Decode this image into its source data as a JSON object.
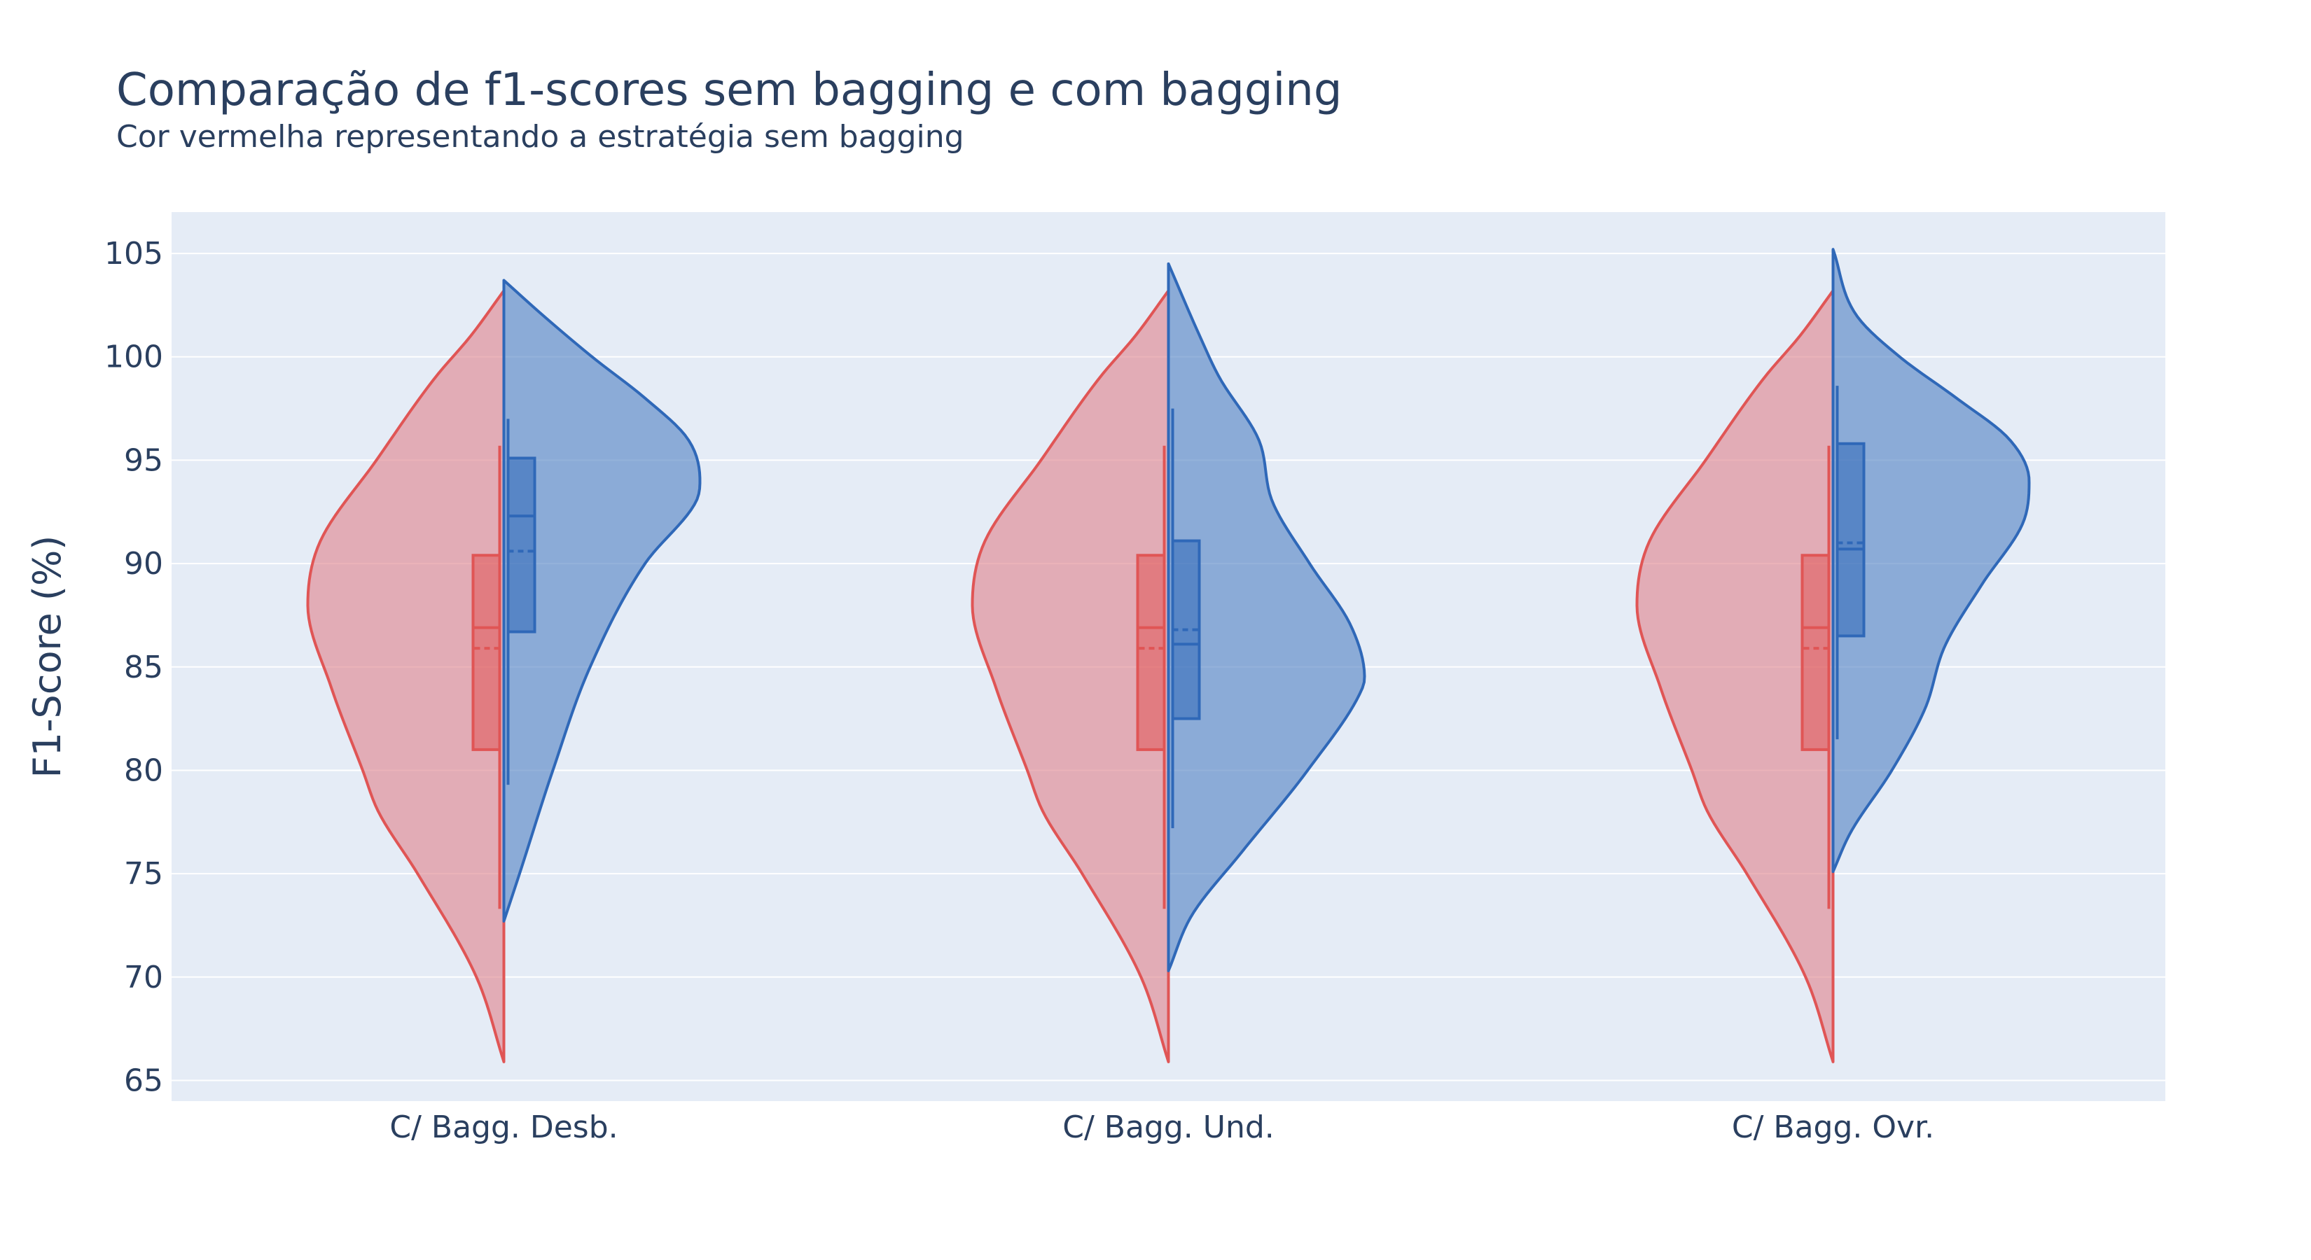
{
  "chart_data": {
    "type": "violin",
    "title": "Comparação de f1-scores sem bagging e com bagging",
    "subtitle": "Cor vermelha representando a estratégia sem bagging",
    "ylabel": "F1-Score (%)",
    "xlabel": "",
    "ylim": [
      64,
      107
    ],
    "yticks": [
      65,
      70,
      75,
      80,
      85,
      90,
      95,
      100,
      105
    ],
    "categories": [
      "C/ Bagg. Desb.",
      "C/ Bagg. Und.",
      "C/ Bagg. Ovr."
    ],
    "grid": true,
    "legend": "none",
    "colors": {
      "red_line": "#e05555",
      "red_fill": "#e08a94",
      "blue_line": "#2f68b8",
      "blue_fill": "#5b88c6",
      "plot_bg": "#e5ecf6",
      "grid": "#ffffff",
      "text": "#2a3f5f"
    },
    "series": [
      {
        "side": "negative",
        "color": "red",
        "violins": [
          {
            "span": [
              65.9,
              103.2
            ],
            "box": {
              "q1": 81.0,
              "median": 86.9,
              "q3": 90.4,
              "mean": 85.9,
              "whisker_low": 73.3,
              "whisker_high": 95.7
            },
            "density": [
              [
                65.9,
                0.0
              ],
              [
                70,
                0.14
              ],
              [
                75,
                0.44
              ],
              [
                78,
                0.64
              ],
              [
                80,
                0.72
              ],
              [
                84,
                0.88
              ],
              [
                88,
                1.0
              ],
              [
                91,
                0.94
              ],
              [
                95,
                0.65
              ],
              [
                99,
                0.35
              ],
              [
                101,
                0.17
              ],
              [
                103.2,
                0.0
              ]
            ]
          },
          {
            "span": [
              65.9,
              103.2
            ],
            "box": {
              "q1": 81.0,
              "median": 86.9,
              "q3": 90.4,
              "mean": 85.9,
              "whisker_low": 73.3,
              "whisker_high": 95.7
            },
            "density": [
              [
                65.9,
                0.0
              ],
              [
                70,
                0.14
              ],
              [
                75,
                0.44
              ],
              [
                78,
                0.64
              ],
              [
                80,
                0.72
              ],
              [
                84,
                0.88
              ],
              [
                88,
                1.0
              ],
              [
                91,
                0.94
              ],
              [
                95,
                0.65
              ],
              [
                99,
                0.35
              ],
              [
                101,
                0.17
              ],
              [
                103.2,
                0.0
              ]
            ]
          },
          {
            "span": [
              65.9,
              103.2
            ],
            "box": {
              "q1": 81.0,
              "median": 86.9,
              "q3": 90.4,
              "mean": 85.9,
              "whisker_low": 73.3,
              "whisker_high": 95.7
            },
            "density": [
              [
                65.9,
                0.0
              ],
              [
                70,
                0.14
              ],
              [
                75,
                0.44
              ],
              [
                78,
                0.64
              ],
              [
                80,
                0.72
              ],
              [
                84,
                0.88
              ],
              [
                88,
                1.0
              ],
              [
                91,
                0.94
              ],
              [
                95,
                0.65
              ],
              [
                99,
                0.35
              ],
              [
                101,
                0.17
              ],
              [
                103.2,
                0.0
              ]
            ]
          }
        ]
      },
      {
        "side": "positive",
        "color": "blue",
        "violins": [
          {
            "span": [
              72.7,
              103.7
            ],
            "box": {
              "q1": 86.7,
              "median": 92.3,
              "q3": 95.1,
              "mean": 90.6,
              "whisker_low": 79.3,
              "whisker_high": 97.0
            },
            "density": [
              [
                72.7,
                0.0
              ],
              [
                75,
                0.08
              ],
              [
                80,
                0.25
              ],
              [
                85,
                0.44
              ],
              [
                90,
                0.72
              ],
              [
                93,
                0.98
              ],
              [
                94,
                1.0
              ],
              [
                96,
                0.94
              ],
              [
                98,
                0.72
              ],
              [
                100,
                0.45
              ],
              [
                102,
                0.2
              ],
              [
                103.7,
                0.0
              ]
            ]
          },
          {
            "span": [
              70.3,
              104.5
            ],
            "box": {
              "q1": 82.5,
              "median": 86.1,
              "q3": 91.1,
              "mean": 86.8,
              "whisker_low": 77.2,
              "whisker_high": 97.5
            },
            "density": [
              [
                70.3,
                0.0
              ],
              [
                73,
                0.12
              ],
              [
                76,
                0.37
              ],
              [
                80,
                0.71
              ],
              [
                84,
                0.99
              ],
              [
                84.5,
                1.0
              ],
              [
                87,
                0.93
              ],
              [
                90,
                0.72
              ],
              [
                93,
                0.53
              ],
              [
                96,
                0.46
              ],
              [
                99,
                0.26
              ],
              [
                101,
                0.16
              ],
              [
                104.5,
                0.0
              ]
            ]
          },
          {
            "span": [
              75.1,
              105.2
            ],
            "box": {
              "q1": 86.5,
              "median": 90.7,
              "q3": 95.8,
              "mean": 91.0,
              "whisker_low": 81.5,
              "whisker_high": 98.6
            },
            "density": [
              [
                75.1,
                0.0
              ],
              [
                77,
                0.09
              ],
              [
                80,
                0.3
              ],
              [
                83,
                0.47
              ],
              [
                86,
                0.57
              ],
              [
                89,
                0.76
              ],
              [
                92,
                0.97
              ],
              [
                94,
                1.0
              ],
              [
                96,
                0.9
              ],
              [
                98,
                0.63
              ],
              [
                100,
                0.34
              ],
              [
                102,
                0.12
              ],
              [
                105.2,
                0.0
              ]
            ]
          }
        ]
      }
    ]
  }
}
